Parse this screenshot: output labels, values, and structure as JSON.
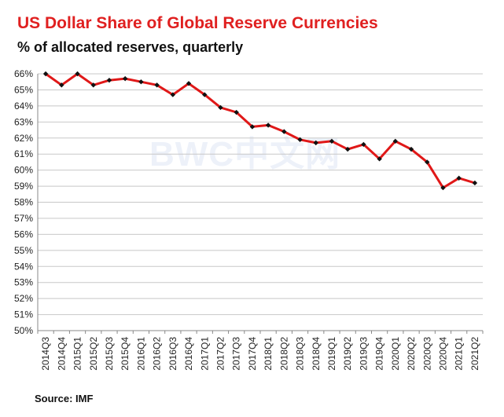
{
  "header": {
    "title": "US Dollar Share of Global  Reserve Currencies",
    "subtitle": "% of allocated reserves, quarterly"
  },
  "footer": {
    "source": "Source: IMF"
  },
  "watermark": "BWC中文网",
  "colors": {
    "title": "#e02020",
    "line": "#e01818",
    "marker": "#111111",
    "marker_alt": "#1a2a8a",
    "grid": "#c8c8c8"
  },
  "chart_data": {
    "type": "line",
    "title": "US Dollar Share of Global  Reserve Currencies",
    "subtitle": "% of allocated reserves, quarterly",
    "xlabel": "",
    "ylabel": "",
    "y_ticks": [
      "50%",
      "51%",
      "52%",
      "53%",
      "54%",
      "55%",
      "56%",
      "57%",
      "58%",
      "59%",
      "60%",
      "61%",
      "62%",
      "63%",
      "64%",
      "65%",
      "66%"
    ],
    "ylim": [
      50,
      66
    ],
    "x_tick_labels": [
      "2014Q3",
      "2014Q4",
      "2015Q1",
      "2015Q2",
      "2015Q3",
      "2015Q4",
      "2016Q1",
      "2016Q2",
      "2016Q3",
      "2016Q4",
      "2017Q1",
      "2017Q2",
      "2017Q3",
      "2017Q4",
      "2018Q1",
      "2018Q2",
      "2018Q3",
      "2018Q4",
      "2019Q1",
      "2019Q2",
      "2019Q3",
      "2019Q4",
      "2020Q1",
      "2020Q2",
      "2020Q3",
      "2020Q4",
      "2021Q1",
      "2021Q2"
    ],
    "categories": [
      "2014Q3",
      "2014Q4",
      "2015Q1",
      "2015Q2",
      "2015Q3",
      "2015Q4",
      "2016Q1",
      "2016Q2",
      "2016Q3",
      "2016Q4",
      "2017Q1",
      "2017Q2",
      "2017Q3",
      "2017Q4",
      "2018Q1",
      "2018Q2",
      "2018Q3",
      "2018Q4",
      "2019Q1",
      "2019Q2",
      "2019Q3",
      "2019Q4",
      "2020Q1",
      "2020Q2",
      "2020Q3",
      "2020Q4",
      "2021Q1",
      "2021Q2"
    ],
    "series": [
      {
        "values": [
          66.0,
          65.3,
          66.0,
          65.3,
          65.6,
          65.7,
          65.5,
          65.3,
          64.7,
          65.4,
          64.7,
          63.9,
          63.6,
          62.7,
          62.8,
          62.4,
          61.9,
          61.7,
          61.8,
          61.3,
          61.6,
          60.7,
          61.8,
          61.3,
          60.5,
          58.9,
          59.5,
          59.2
        ]
      }
    ],
    "grid": true,
    "legend": "none"
  }
}
